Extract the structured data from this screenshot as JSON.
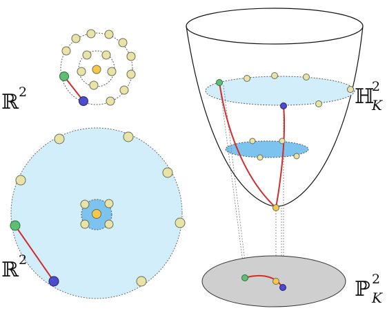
{
  "labels": {
    "plane_small": {
      "symbol": "ℝ",
      "sup": "2"
    },
    "plane_large": {
      "symbol": "ℝ",
      "sup": "2"
    },
    "hyperboloid": {
      "symbol": "ℍ",
      "sup": "2",
      "sub": "K"
    },
    "projective": {
      "symbol": "ℙ",
      "sup": "2",
      "sub": "K"
    }
  },
  "colors": {
    "node_fill": "#e8e4a8",
    "node_stroke": "#6b6b55",
    "center_node": "#f5c84a",
    "green_node": "#5cbf73",
    "blue_node": "#4c4ccf",
    "geodesic": "#d42a2a",
    "disk_light": "#d2eefb",
    "disk_mid": "#7cc4ef",
    "projective_disk": "#cfcfcf"
  },
  "icons": {
    "small_plane": "concentric-ring-graph-icon",
    "large_plane": "poincare-disk-icon",
    "hyperboloid": "hyperboloid-surface-icon",
    "projective": "projective-disk-icon"
  }
}
